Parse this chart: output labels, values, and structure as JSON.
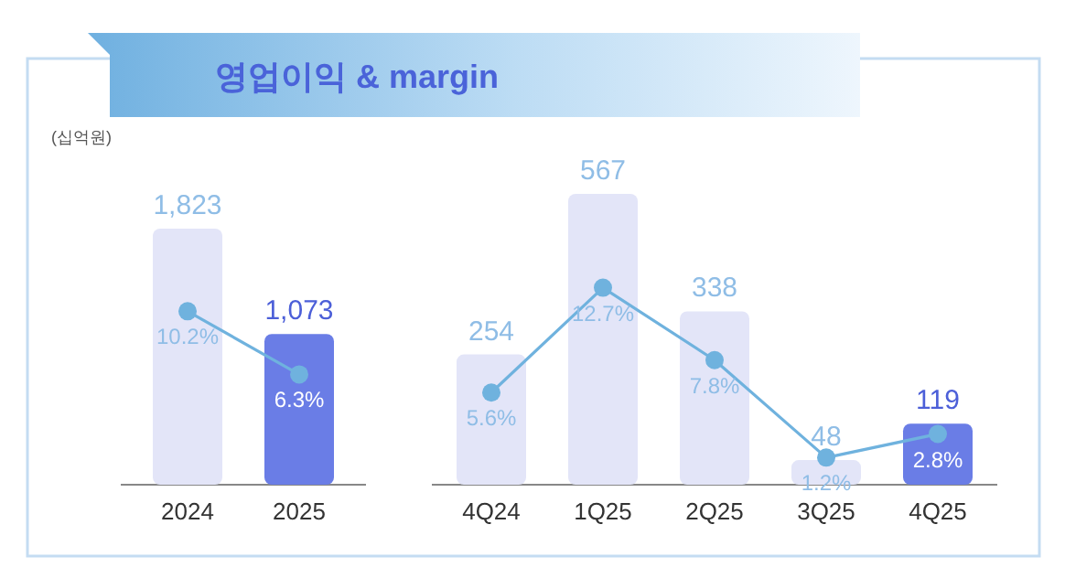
{
  "chart_data": [
    {
      "type": "bar",
      "title": "영업이익 & margin",
      "ylabel": "(십억원)",
      "categories": [
        "2024",
        "2025"
      ],
      "series": [
        {
          "colors": [
            "#e3e5f8",
            "#6a7de6"
          ],
          "values": [
            1823,
            1073
          ],
          "value_labels": [
            "1,823",
            "1,073"
          ]
        },
        {
          "type": "line",
          "axis": "y2",
          "color": "#6fb2de",
          "marker": "circle",
          "values": [
            10.2,
            6.3
          ],
          "value_labels": [
            "10.2%",
            "6.3%"
          ]
        }
      ]
    },
    {
      "type": "bar",
      "categories": [
        "4Q24",
        "1Q25",
        "2Q25",
        "3Q25",
        "4Q25"
      ],
      "series": [
        {
          "colors": [
            "#e3e5f8",
            "#e3e5f8",
            "#e3e5f8",
            "#e3e5f8",
            "#6a7de6"
          ],
          "values": [
            254,
            567,
            338,
            48,
            119
          ],
          "value_labels": [
            "254",
            "567",
            "338",
            "48",
            "119"
          ]
        },
        {
          "type": "line",
          "axis": "y2",
          "color": "#6fb2de",
          "marker": "circle",
          "values": [
            5.6,
            12.7,
            7.8,
            1.2,
            2.8
          ],
          "value_labels": [
            "5.6%",
            "12.7%",
            "7.8%",
            "1.2%",
            "2.8%"
          ]
        }
      ]
    }
  ]
}
